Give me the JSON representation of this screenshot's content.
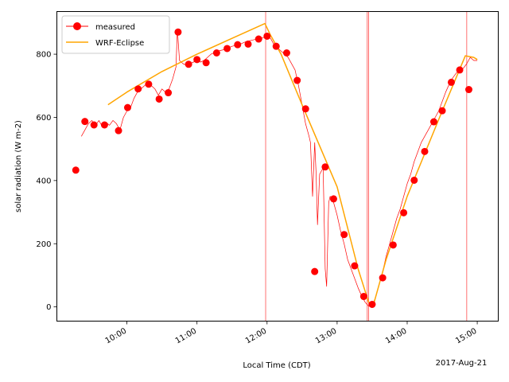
{
  "chart_data": {
    "type": "line",
    "title": "",
    "xlabel": "Local Time (CDT)",
    "ylabel": "solar radiation (W m-2)",
    "date_label": "2017-Aug-21",
    "x_unit": "hours (local time)",
    "xlim": [
      9.0,
      15.3
    ],
    "ylim": [
      -45,
      935
    ],
    "x_ticks": [
      {
        "value": 10,
        "label": "10:00"
      },
      {
        "value": 11,
        "label": "11:00"
      },
      {
        "value": 12,
        "label": "12:00"
      },
      {
        "value": 13,
        "label": "13:00"
      },
      {
        "value": 14,
        "label": "14:00"
      },
      {
        "value": 15,
        "label": "15:00"
      }
    ],
    "y_ticks": [
      0,
      200,
      400,
      600,
      800
    ],
    "vertical_lines": [
      11.98,
      13.43,
      13.45,
      14.85
    ],
    "series": [
      {
        "name": "measured",
        "color": "#ff0000",
        "marker": "circle",
        "line_points": [
          [
            9.35,
            540
          ],
          [
            9.4,
            560
          ],
          [
            9.45,
            580
          ],
          [
            9.5,
            590
          ],
          [
            9.55,
            575
          ],
          [
            9.6,
            590
          ],
          [
            9.65,
            570
          ],
          [
            9.7,
            585
          ],
          [
            9.75,
            575
          ],
          [
            9.8,
            590
          ],
          [
            9.85,
            580
          ],
          [
            9.9,
            560
          ],
          [
            9.95,
            600
          ],
          [
            10.0,
            620
          ],
          [
            10.05,
            630
          ],
          [
            10.1,
            660
          ],
          [
            10.15,
            680
          ],
          [
            10.2,
            690
          ],
          [
            10.25,
            700
          ],
          [
            10.3,
            710
          ],
          [
            10.35,
            700
          ],
          [
            10.4,
            690
          ],
          [
            10.45,
            670
          ],
          [
            10.5,
            690
          ],
          [
            10.55,
            680
          ],
          [
            10.6,
            690
          ],
          [
            10.65,
            720
          ],
          [
            10.7,
            760
          ],
          [
            10.72,
            880
          ],
          [
            10.75,
            780
          ],
          [
            10.8,
            770
          ],
          [
            10.85,
            765
          ],
          [
            10.9,
            770
          ],
          [
            10.95,
            775
          ],
          [
            11.0,
            780
          ],
          [
            11.05,
            775
          ],
          [
            11.1,
            780
          ],
          [
            11.15,
            790
          ],
          [
            11.2,
            800
          ],
          [
            11.3,
            810
          ],
          [
            11.4,
            815
          ],
          [
            11.5,
            825
          ],
          [
            11.6,
            830
          ],
          [
            11.7,
            840
          ],
          [
            11.8,
            845
          ],
          [
            11.9,
            850
          ],
          [
            12.0,
            855
          ],
          [
            12.05,
            850
          ],
          [
            12.1,
            830
          ],
          [
            12.2,
            810
          ],
          [
            12.3,
            790
          ],
          [
            12.4,
            750
          ],
          [
            12.45,
            700
          ],
          [
            12.5,
            640
          ],
          [
            12.55,
            580
          ],
          [
            12.6,
            540
          ],
          [
            12.62,
            520
          ],
          [
            12.65,
            350
          ],
          [
            12.68,
            520
          ],
          [
            12.7,
            420
          ],
          [
            12.72,
            260
          ],
          [
            12.75,
            420
          ],
          [
            12.8,
            440
          ],
          [
            12.83,
            120
          ],
          [
            12.85,
            65
          ],
          [
            12.88,
            330
          ],
          [
            12.9,
            350
          ],
          [
            12.95,
            330
          ],
          [
            13.0,
            290
          ],
          [
            13.05,
            240
          ],
          [
            13.1,
            200
          ],
          [
            13.15,
            150
          ],
          [
            13.2,
            120
          ],
          [
            13.25,
            90
          ],
          [
            13.3,
            60
          ],
          [
            13.35,
            35
          ],
          [
            13.4,
            15
          ],
          [
            13.45,
            2
          ],
          [
            13.5,
            5
          ],
          [
            13.55,
            30
          ],
          [
            13.6,
            70
          ],
          [
            13.65,
            110
          ],
          [
            13.7,
            160
          ],
          [
            13.75,
            200
          ],
          [
            13.8,
            240
          ],
          [
            13.85,
            280
          ],
          [
            13.9,
            310
          ],
          [
            13.95,
            350
          ],
          [
            14.0,
            390
          ],
          [
            14.05,
            420
          ],
          [
            14.1,
            460
          ],
          [
            14.15,
            490
          ],
          [
            14.2,
            520
          ],
          [
            14.25,
            540
          ],
          [
            14.3,
            560
          ],
          [
            14.35,
            580
          ],
          [
            14.4,
            600
          ],
          [
            14.45,
            620
          ],
          [
            14.5,
            650
          ],
          [
            14.55,
            680
          ],
          [
            14.6,
            705
          ],
          [
            14.65,
            725
          ],
          [
            14.7,
            740
          ],
          [
            14.75,
            750
          ],
          [
            14.8,
            755
          ],
          [
            14.85,
            770
          ],
          [
            14.9,
            790
          ],
          [
            14.95,
            780
          ],
          [
            15.0,
            780
          ]
        ],
        "marker_points": [
          [
            9.27,
            433
          ],
          [
            9.4,
            587
          ],
          [
            9.53,
            576
          ],
          [
            9.68,
            576
          ],
          [
            9.88,
            558
          ],
          [
            10.01,
            631
          ],
          [
            10.16,
            690
          ],
          [
            10.31,
            705
          ],
          [
            10.46,
            658
          ],
          [
            10.59,
            678
          ],
          [
            10.73,
            870
          ],
          [
            10.88,
            768
          ],
          [
            11.0,
            783
          ],
          [
            11.13,
            773
          ],
          [
            11.28,
            804
          ],
          [
            11.43,
            818
          ],
          [
            11.58,
            830
          ],
          [
            11.73,
            832
          ],
          [
            11.88,
            848
          ],
          [
            12.0,
            857
          ],
          [
            12.13,
            825
          ],
          [
            12.28,
            804
          ],
          [
            12.43,
            717
          ],
          [
            12.55,
            627
          ],
          [
            12.68,
            112
          ],
          [
            12.83,
            443
          ],
          [
            12.95,
            342
          ],
          [
            13.1,
            229
          ],
          [
            13.25,
            130
          ],
          [
            13.38,
            33
          ],
          [
            13.5,
            8
          ],
          [
            13.65,
            92
          ],
          [
            13.8,
            196
          ],
          [
            13.95,
            298
          ],
          [
            14.1,
            401
          ],
          [
            14.25,
            492
          ],
          [
            14.38,
            586
          ],
          [
            14.5,
            621
          ],
          [
            14.63,
            711
          ],
          [
            14.75,
            750
          ],
          [
            14.88,
            688
          ]
        ]
      },
      {
        "name": "WRF-Eclipse",
        "color": "#ffa500",
        "marker": "none",
        "points": [
          [
            9.73,
            640
          ],
          [
            10.0,
            680
          ],
          [
            10.5,
            745
          ],
          [
            11.0,
            800
          ],
          [
            11.5,
            850
          ],
          [
            11.97,
            897
          ],
          [
            12.05,
            860
          ],
          [
            12.2,
            800
          ],
          [
            12.5,
            640
          ],
          [
            13.0,
            380
          ],
          [
            13.3,
            120
          ],
          [
            13.45,
            15
          ],
          [
            13.52,
            8
          ],
          [
            13.7,
            150
          ],
          [
            14.0,
            350
          ],
          [
            14.5,
            620
          ],
          [
            14.83,
            795
          ],
          [
            14.95,
            790
          ],
          [
            15.0,
            783
          ]
        ]
      }
    ],
    "legend": {
      "position": "top-left",
      "entries": [
        "measured",
        "WRF-Eclipse"
      ]
    }
  }
}
